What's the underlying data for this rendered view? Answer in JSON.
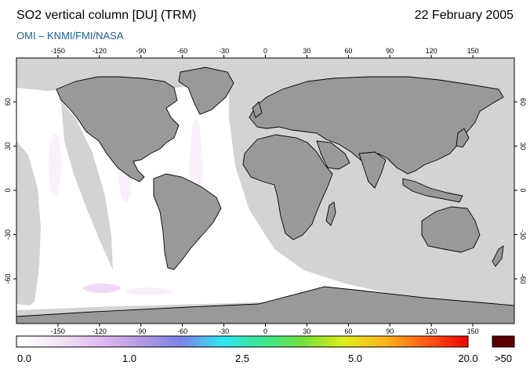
{
  "header": {
    "title": "SO2 vertical column [DU] (TRM)",
    "date": "22 February 2005",
    "credit": "OMI  –  KNMI/FMI/NASA"
  },
  "map": {
    "lon_ticks": [
      "-150",
      "-120",
      "-90",
      "-60",
      "-30",
      "0",
      "30",
      "60",
      "90",
      "120",
      "150"
    ],
    "lat_ticks": [
      "60",
      "30",
      "0",
      "-30",
      "-60"
    ],
    "colors": {
      "no_data": "#d3d3d3",
      "land": "#999999",
      "coast": "#000000",
      "background": "#ffffff"
    }
  },
  "colorbar": {
    "labels": [
      "0.0",
      "1.0",
      "2.5",
      "5.0",
      "20.0"
    ],
    "overflow_label": ">50",
    "gradient_stops": [
      "#ffffff",
      "#f3e6f6",
      "#e3bdf0",
      "#b59be6",
      "#7c82e6",
      "#2fe6f4",
      "#3be88c",
      "#76e23a",
      "#e2ee1a",
      "#ffb21c",
      "#ff5a16",
      "#f00000"
    ],
    "overflow_color": "#5a0000"
  }
}
